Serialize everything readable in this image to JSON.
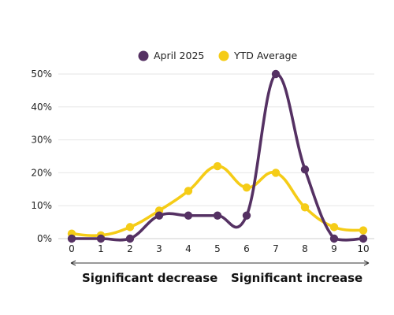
{
  "chart_data": {
    "type": "line",
    "title": "",
    "xlabel": "",
    "ylabel": "",
    "x": [
      0,
      1,
      2,
      3,
      4,
      5,
      6,
      7,
      8,
      9,
      10
    ],
    "xlim": [
      0,
      10
    ],
    "ylim": [
      0,
      50
    ],
    "y_ticks": [
      "0%",
      "10%",
      "20%",
      "30%",
      "40%",
      "50%"
    ],
    "y_tick_values": [
      0,
      10,
      20,
      30,
      40,
      50
    ],
    "grid": true,
    "legend_placement": "top-center",
    "series": [
      {
        "name": "April 2025",
        "color": "#553163",
        "values": [
          0,
          0,
          0,
          7,
          7,
          7,
          7,
          50,
          21,
          0,
          0
        ]
      },
      {
        "name": "YTD Average",
        "color": "#F5CC17",
        "values": [
          1.5,
          1,
          3.5,
          8.5,
          14.5,
          22,
          15.5,
          20,
          9.5,
          3.5,
          2.5
        ]
      }
    ],
    "range_labels": {
      "left": "Significant decrease",
      "right": "Significant increase"
    }
  }
}
